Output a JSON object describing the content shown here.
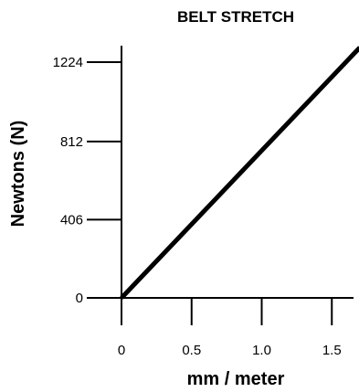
{
  "chart_data": {
    "type": "line",
    "title": "BELT STRETCH",
    "xlabel": "mm / meter",
    "ylabel": "Newtons (N)",
    "xlim": [
      0,
      1.7
    ],
    "ylim": [
      0,
      1224
    ],
    "x_ticks": [
      0,
      0.5,
      1.0,
      1.5
    ],
    "x_tick_labels": [
      "0",
      "0.5",
      "1.0",
      "1.5"
    ],
    "y_ticks": [
      0,
      406,
      812,
      1224
    ],
    "y_tick_labels": [
      "0",
      "406",
      "812",
      "1224"
    ],
    "grid": false,
    "series": [
      {
        "x": [
          0,
          1.7
        ],
        "y": [
          0,
          1300
        ]
      }
    ],
    "colors": {
      "line": "#000000",
      "axis": "#000000"
    }
  }
}
